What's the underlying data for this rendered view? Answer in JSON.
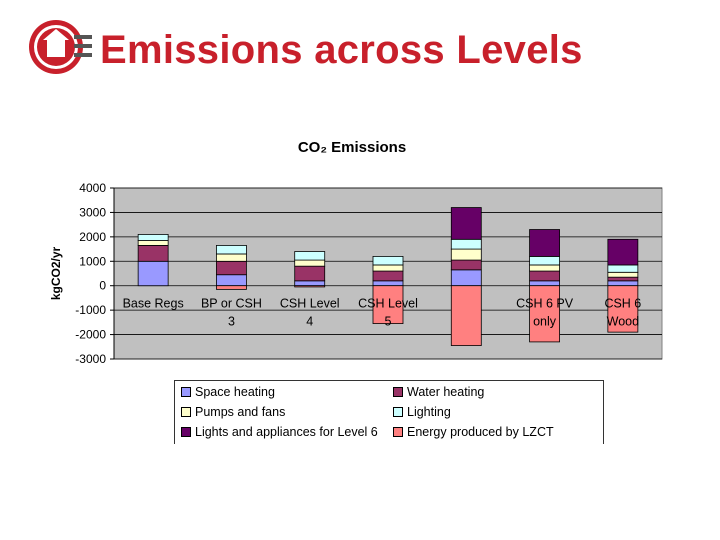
{
  "slide": {
    "title": "Emissions across Levels"
  },
  "chart_data": {
    "type": "bar",
    "stacked": true,
    "title": "CO₂ Emissions",
    "ylabel": "kgCO2/yr",
    "xlabel": "",
    "ylim": [
      -3000,
      4000
    ],
    "yticks": [
      4000,
      3000,
      2000,
      1000,
      0,
      -1000,
      -2000,
      -3000
    ],
    "grid": true,
    "legend_position": "bottom",
    "categories": [
      [
        "Base Regs"
      ],
      [
        "BP or CSH",
        "3"
      ],
      [
        "CSH Level",
        "4"
      ],
      [
        "CSH Level",
        "5"
      ],
      [
        ""
      ],
      [
        "CSH 6 PV",
        "only"
      ],
      [
        "CSH 6",
        "Wood"
      ]
    ],
    "series": [
      {
        "name": "Space heating",
        "color": "#9999ff",
        "values": [
          1000,
          450,
          200,
          200,
          650,
          200,
          200
        ]
      },
      {
        "name": "Water heating",
        "color": "#993366",
        "values": [
          650,
          550,
          600,
          400,
          400,
          400,
          150
        ]
      },
      {
        "name": "Pumps and fans",
        "color": "#ffffcc",
        "values": [
          200,
          300,
          250,
          250,
          450,
          250,
          200
        ]
      },
      {
        "name": "Lighting",
        "color": "#ccffff",
        "values": [
          250,
          350,
          350,
          350,
          400,
          350,
          300
        ]
      },
      {
        "name": "Lights and appliances for Level 6",
        "color": "#660066",
        "values": [
          0,
          0,
          0,
          0,
          1300,
          1100,
          1050
        ]
      },
      {
        "name": "Energy produced by LZCT",
        "color": "#ff8080",
        "values": [
          0,
          -150,
          -50,
          -1550,
          -2450,
          -2300,
          -1900
        ]
      }
    ]
  }
}
